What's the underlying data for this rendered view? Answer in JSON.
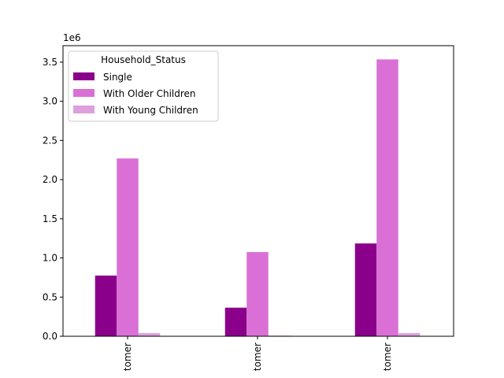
{
  "chart_data": {
    "type": "bar",
    "categories": [
      "tomer",
      "tomer",
      "tomer"
    ],
    "series": [
      {
        "name": "Single",
        "color": "#8b008b",
        "values": [
          775000,
          365000,
          1185000
        ]
      },
      {
        "name": "With Older Children",
        "color": "#da70d6",
        "values": [
          2270000,
          1075000,
          3535000
        ]
      },
      {
        "name": "With Young Children",
        "color": "#dda0dd",
        "values": [
          40000,
          8000,
          40000
        ]
      }
    ],
    "legend_title": "Household_Status",
    "legend_position": "top-left",
    "y_scale_label": "1e6",
    "y_ticks": [
      "0.0",
      "0.5",
      "1.0",
      "1.5",
      "2.0",
      "2.5",
      "3.0",
      "3.5"
    ],
    "y_tick_values": [
      0,
      500000,
      1000000,
      1500000,
      2000000,
      2500000,
      3000000,
      3500000
    ],
    "ylim": [
      0,
      3710000
    ],
    "grid": false,
    "title": "",
    "xlabel": "",
    "ylabel": ""
  }
}
